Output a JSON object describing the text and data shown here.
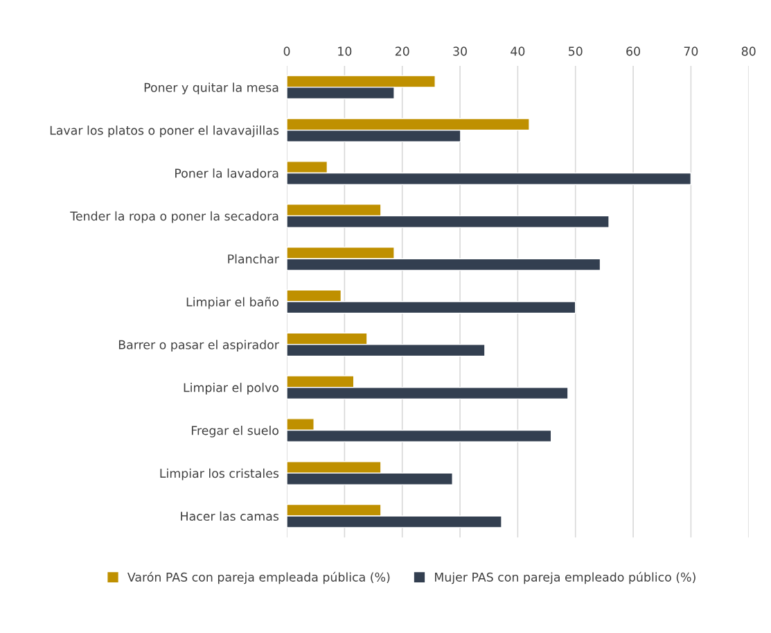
{
  "chart_data": {
    "type": "bar",
    "orientation": "horizontal",
    "categories": [
      "Poner y quitar la mesa",
      "Lavar los platos o poner el lavavajillas",
      "Poner la lavadora",
      "Tender la ropa o poner la secadora",
      "Planchar",
      "Limpiar el baño",
      "Barrer o pasar el aspirador",
      "Limpiar el polvo",
      "Fregar el suelo",
      "Limpiar los cristales",
      "Hacer las camas"
    ],
    "series": [
      {
        "name": "Varón PAS con pareja empleada pública (%)",
        "color": "#bf9000",
        "values": [
          25.7,
          42.0,
          7.0,
          16.3,
          18.6,
          9.4,
          13.9,
          11.6,
          4.7,
          16.3,
          16.3
        ]
      },
      {
        "name": "Mujer PAS con pareja empleado público (%)",
        "color": "#333f50",
        "values": [
          18.6,
          30.1,
          70.0,
          55.8,
          54.3,
          50.0,
          34.3,
          48.7,
          45.8,
          28.7,
          37.2
        ]
      }
    ],
    "xlim": [
      0,
      80
    ],
    "xticks": [
      0,
      10,
      20,
      30,
      40,
      50,
      60,
      70,
      80
    ],
    "grid": "x",
    "legend": "bottom"
  }
}
